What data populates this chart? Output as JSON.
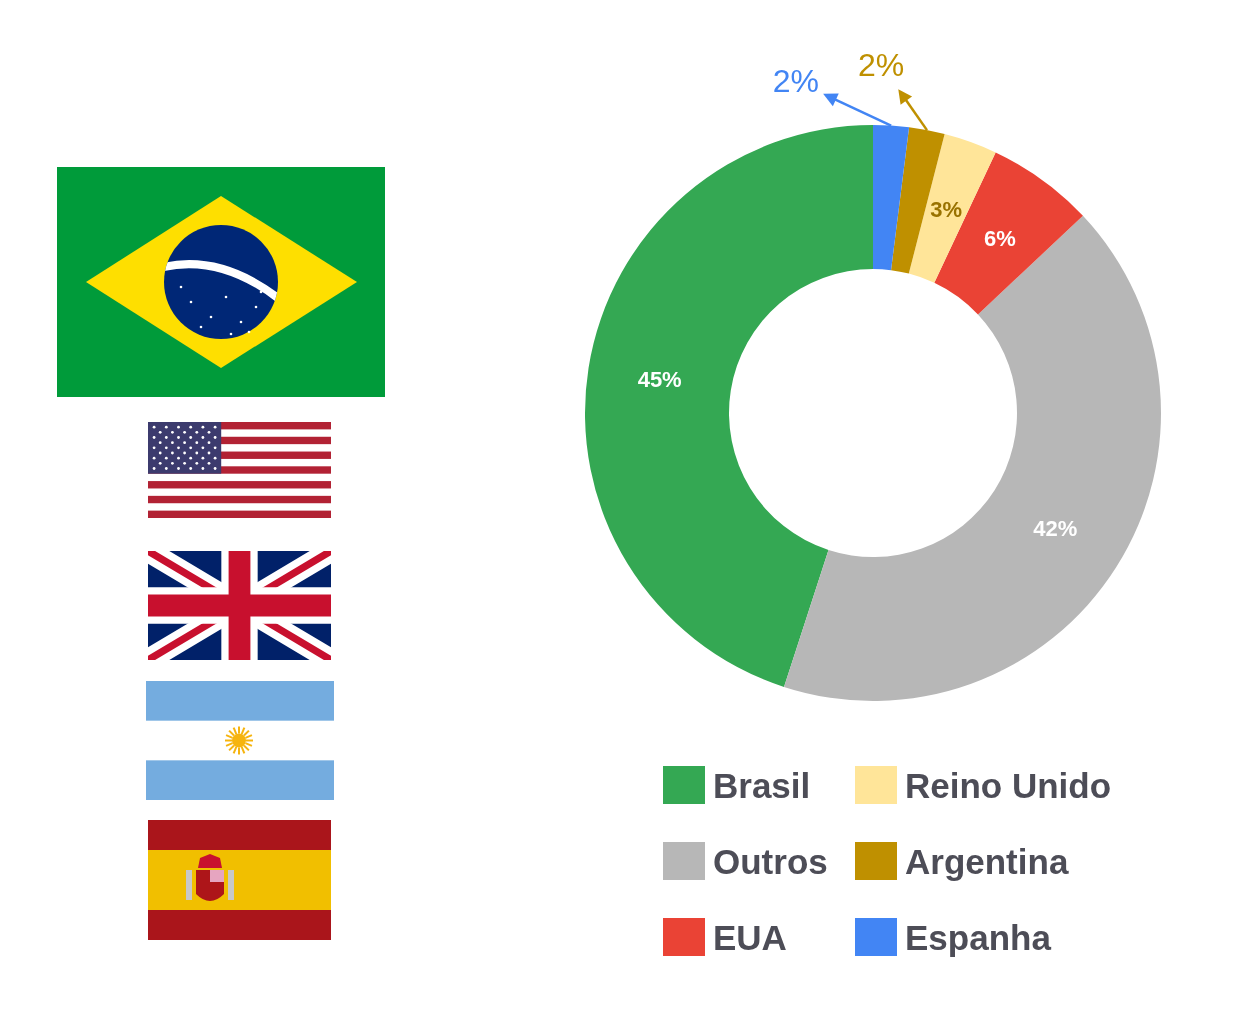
{
  "chart_data": {
    "type": "donut",
    "categories": [
      "Brasil",
      "Outros",
      "EUA",
      "Reino Unido",
      "Argentina",
      "Espanha"
    ],
    "values": [
      45,
      42,
      6,
      3,
      2,
      2
    ],
    "colors": [
      "#34a853",
      "#b7b7b7",
      "#ea4335",
      "#ffe599",
      "#bf9000",
      "#4285f4"
    ],
    "value_labels": [
      "45%",
      "42%",
      "6%",
      "3%",
      "2%",
      "2%"
    ],
    "legend": "bottom"
  }
}
